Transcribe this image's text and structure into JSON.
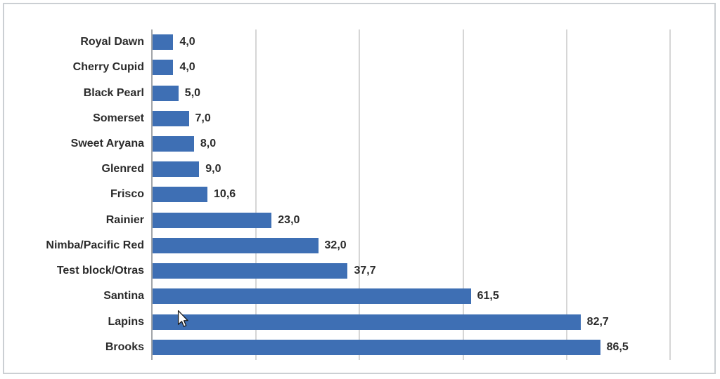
{
  "frame": {
    "border_color": "#cbcfd3"
  },
  "chart_data": {
    "type": "bar",
    "orientation": "horizontal",
    "title": "",
    "xlabel": "",
    "ylabel": "",
    "categories": [
      "Royal Dawn",
      "Cherry Cupid",
      "Black Pearl",
      "Somerset",
      "Sweet Aryana",
      "Glenred",
      "Frisco",
      "Rainier",
      "Nimba/Pacific Red",
      "Test block/Otras",
      "Santina",
      "Lapins",
      "Brooks"
    ],
    "values": [
      4.0,
      4.0,
      5.0,
      7.0,
      8.0,
      9.0,
      10.6,
      23.0,
      32.0,
      37.7,
      61.5,
      82.7,
      86.5
    ],
    "value_labels": [
      "4,0",
      "4,0",
      "5,0",
      "7,0",
      "8,0",
      "9,0",
      "10,6",
      "23,0",
      "32,0",
      "37,7",
      "61,5",
      "82,7",
      "86,5"
    ],
    "xlim": [
      0,
      100
    ],
    "grid": true,
    "grid_interval": 20,
    "legend": "none",
    "axis_tick_labels": "none",
    "bar_color": "#3e6fb4",
    "text_color": "#2b2b2b",
    "gridline_color": "#d6d6d6",
    "axis_line_color": "#a2a5a9"
  },
  "cursor": {
    "type": "arrow-pointer"
  }
}
